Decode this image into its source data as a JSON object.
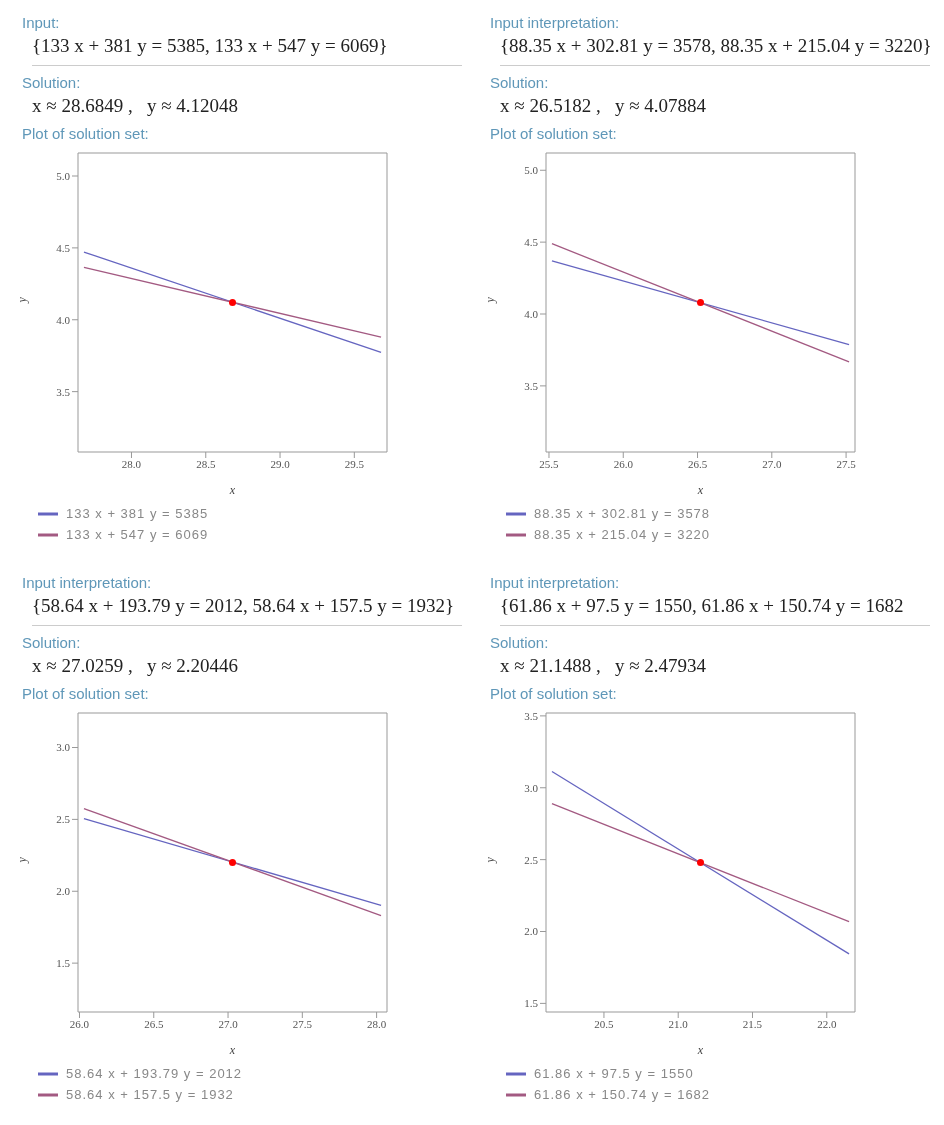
{
  "chart_data": [
    {
      "type": "line",
      "annotations": [
        "Input:",
        "{133 x + 381 y = 5385, 133 x + 547 y = 6069}",
        "Solution:",
        "x ≈ 28.6849 ,   y ≈ 4.12048",
        "Plot of solution set:"
      ],
      "xlabel": "x",
      "ylabel": "y",
      "xlim": [
        27.64,
        29.72
      ],
      "ylim": [
        3.08,
        5.16
      ],
      "xticks": [
        {
          "value": 28,
          "label": "28.0"
        },
        28.5,
        {
          "value": 29,
          "label": "29.0"
        },
        29.5
      ],
      "yticks": [
        3.5,
        {
          "value": 4,
          "label": "4.0"
        },
        4.5,
        {
          "value": 5,
          "label": "5.0"
        }
      ],
      "legend": "bottom",
      "series": [
        {
          "name": "133 x + 381 y = 5385",
          "color": "#6565c0",
          "x": [
            27.68,
            29.68
          ],
          "values": [
            4.471,
            3.773
          ]
        },
        {
          "name": "133 x + 547 y = 6069",
          "color": "#a35a82",
          "x": [
            27.68,
            29.68
          ],
          "values": [
            4.365,
            3.879
          ]
        },
        {
          "type": "scatter",
          "color": "#ff0000",
          "x": [
            28.68
          ],
          "values": [
            4.12
          ]
        }
      ]
    },
    {
      "type": "line",
      "annotations": [
        "Input interpretation:",
        "{88.35 x + 302.81 y = 3578, 88.35 x + 215.04 y = 3220}",
        "Solution:",
        "x ≈ 26.5182 ,   y ≈ 4.07884",
        "Plot of solution set:"
      ],
      "xlabel": "x",
      "ylabel": "y",
      "xlim": [
        25.48,
        27.56
      ],
      "ylim": [
        3.04,
        5.12
      ],
      "xticks": [
        25.5,
        {
          "value": 26,
          "label": "26.0"
        },
        26.5,
        {
          "value": 27,
          "label": "27.0"
        },
        27.5
      ],
      "yticks": [
        3.5,
        {
          "value": 4,
          "label": "4.0"
        },
        4.5,
        {
          "value": 5,
          "label": "5.0"
        }
      ],
      "legend": "bottom",
      "series": [
        {
          "name": "88.35 x + 302.81 y = 3578",
          "color": "#6565c0",
          "x": [
            25.52,
            27.52
          ],
          "values": [
            4.37,
            3.787
          ]
        },
        {
          "name": "88.35 x + 215.04 y = 3220",
          "color": "#a35a82",
          "x": [
            25.52,
            27.52
          ],
          "values": [
            4.489,
            3.667
          ]
        },
        {
          "type": "scatter",
          "color": "#ff0000",
          "x": [
            26.52
          ],
          "values": [
            4.08
          ]
        }
      ]
    },
    {
      "type": "line",
      "annotations": [
        "Input interpretation:",
        "{58.64 x + 193.79 y = 2012, 58.64 x + 157.5 y = 1932}",
        "Solution:",
        "x ≈ 27.0259 ,   y ≈ 2.20446",
        "Plot of solution set:"
      ],
      "xlabel": "x",
      "ylabel": "y",
      "xlim": [
        25.99,
        28.07
      ],
      "ylim": [
        1.16,
        3.24
      ],
      "xticks": [
        {
          "value": 26,
          "label": "26.0"
        },
        26.5,
        {
          "value": 27,
          "label": "27.0"
        },
        27.5,
        {
          "value": 28,
          "label": "28.0"
        }
      ],
      "yticks": [
        1.5,
        {
          "value": 2,
          "label": "2.0"
        },
        2.5,
        {
          "value": 3,
          "label": "3.0"
        }
      ],
      "legend": "bottom",
      "series": [
        {
          "name": "58.64 x + 193.79 y = 2012",
          "color": "#6565c0",
          "x": [
            26.03,
            28.03
          ],
          "values": [
            2.506,
            1.901
          ]
        },
        {
          "name": "58.64 x + 157.5 y = 1932",
          "color": "#a35a82",
          "x": [
            26.03,
            28.03
          ],
          "values": [
            2.575,
            1.831
          ]
        },
        {
          "type": "scatter",
          "color": "#ff0000",
          "x": [
            27.03
          ],
          "values": [
            2.2
          ]
        }
      ]
    },
    {
      "type": "line",
      "annotations": [
        "Input interpretation:",
        "{61.86 x + 97.5 y = 1550, 61.86 x + 150.74 y = 1682",
        "Solution:",
        "x ≈ 21.1488 ,   y ≈ 2.47934",
        "Plot of solution set:"
      ],
      "xlabel": "x",
      "ylabel": "y",
      "xlim": [
        20.11,
        22.19
      ],
      "ylim": [
        1.44,
        3.52
      ],
      "xticks": [
        20.5,
        {
          "value": 21,
          "label": "21.0"
        },
        21.5,
        {
          "value": 22,
          "label": "22.0"
        }
      ],
      "yticks": [
        1.5,
        {
          "value": 2,
          "label": "2.0"
        },
        2.5,
        {
          "value": 3,
          "label": "3.0"
        },
        3.5
      ],
      "legend": "bottom",
      "series": [
        {
          "name": "61.86 x + 97.5 y = 1550",
          "color": "#6565c0",
          "x": [
            20.15,
            22.15
          ],
          "values": [
            3.113,
            1.844
          ]
        },
        {
          "name": "61.86 x + 150.74 y = 1682",
          "color": "#a35a82",
          "x": [
            20.15,
            22.15
          ],
          "values": [
            2.889,
            2.068
          ]
        },
        {
          "type": "scatter",
          "color": "#ff0000",
          "x": [
            21.15
          ],
          "values": [
            2.48
          ]
        }
      ]
    }
  ]
}
